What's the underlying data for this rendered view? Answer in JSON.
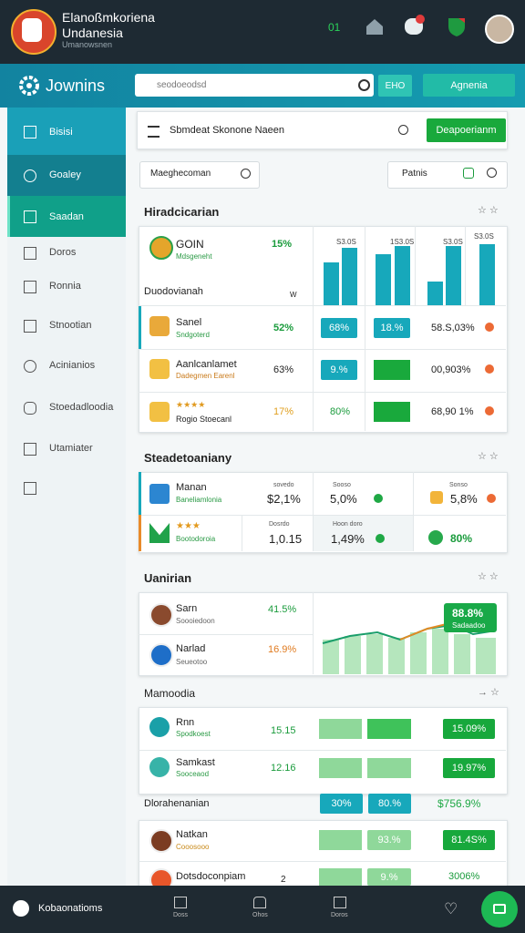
{
  "header": {
    "title": "Elanoßmkoriena",
    "subtitle": "Undanesia",
    "tagline": "Umanowsnen",
    "badge": "01"
  },
  "toolbar": {
    "brand": "Jownins",
    "search": "seodoeodsd",
    "button_small": "ЕНО",
    "button": "Agnenia"
  },
  "sidebar": [
    "Bisisi",
    "Goaley",
    "Saadan",
    "Doros",
    "Ronnia",
    "Stnootian",
    "Acinianios",
    "Stoedadloodia",
    "Utamiater"
  ],
  "panel": {
    "title": "Sbmdeat Skonone Naeen",
    "button": "Deapoerianm",
    "filter": "Maeghecoman",
    "filter_right": "Patnis"
  },
  "section1": {
    "title": "Hiradcicarian",
    "top": {
      "name": "GOIN",
      "sub": "Mdsgeneht",
      "value": "15%"
    },
    "chart_labels": [
      "S3.0S",
      "1S3.0S",
      "S3.0S",
      "S3.0S"
    ],
    "group": "Duodovianah",
    "group_note": "W",
    "rows": [
      {
        "name": "Sanel",
        "sub": "Sndgoterd",
        "value": "52%",
        "box": "68%",
        "box2": "18.%",
        "total": "58.S,03%"
      },
      {
        "name": "Aanlcanlamet",
        "sub": "Dadegmen Earenl",
        "value": "63%",
        "box": "9.%",
        "total": "00,903%"
      },
      {
        "name": "Rogio Stoecanl",
        "rating": "★★★★",
        "value": "17%",
        "box": "80%",
        "total": "68,90 1%"
      }
    ]
  },
  "section2": {
    "title": "Steadetoaniany",
    "rows": [
      {
        "name": "Manan",
        "sub": "Baneliamlonia",
        "cells": [
          {
            "label": "sovedo",
            "value": "$2,1%"
          },
          {
            "label": "Sooso",
            "value": "5,0%"
          },
          {
            "label": "Sonso",
            "value": "5,8%"
          }
        ]
      },
      {
        "rating": "★★★",
        "sub": "Bootodoroia",
        "cells": [
          {
            "label": "Dosrdo",
            "value": "1,0.15"
          },
          {
            "label": "Hoon doro",
            "value": "1,49%"
          },
          {
            "value": "80%"
          }
        ]
      }
    ]
  },
  "section3": {
    "title": "Uanirian",
    "rows": [
      {
        "name": "Sarn",
        "sub": "Soooiedoon",
        "value": "41.5%"
      },
      {
        "name": "Narlad",
        "sub": "Seueotoo",
        "value": "16.9%"
      }
    ],
    "tooltip": {
      "value": "88.8%",
      "label": "Sadaadoo"
    }
  },
  "section4": {
    "title": "Mamoodia",
    "rows": [
      {
        "name": "Rnn",
        "sub": "Spodkoest",
        "value": "15.15",
        "total": "15.09%"
      },
      {
        "name": "Samkast",
        "sub": "Sooceaod",
        "value": "12.16",
        "total": "19.97%"
      }
    ],
    "group": {
      "title": "Dlorahenanian",
      "boxes": [
        "30%",
        "80.%"
      ],
      "total": "$756.9%"
    },
    "rows2": [
      {
        "name": "Natkan",
        "sub": "Cooosooo",
        "box": "93.%",
        "total": "81.4S%"
      },
      {
        "name": "Dotsdoconpiam",
        "value": "2",
        "box": "9.%",
        "total": "3006%"
      }
    ]
  },
  "bottom_nav": {
    "user": "Kobaonatioms",
    "tabs": [
      "Doss",
      "Ohos",
      "Doros"
    ]
  }
}
